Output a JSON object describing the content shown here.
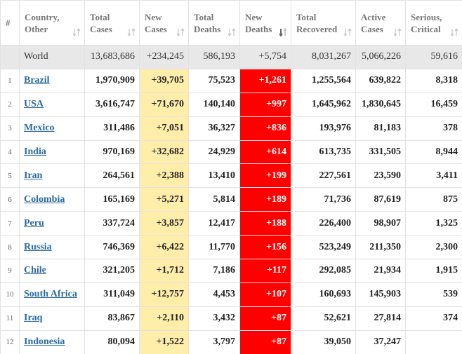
{
  "table": {
    "headers": [
      [
        "#"
      ],
      [
        "Country,",
        "Other"
      ],
      [
        "Total",
        "Cases"
      ],
      [
        "New",
        "Cases"
      ],
      [
        "Total",
        "Deaths"
      ],
      [
        "New",
        "Deaths"
      ],
      [
        "Total",
        "Recovered"
      ],
      [
        "Active",
        "Cases"
      ],
      [
        "Serious,",
        "Critical"
      ]
    ],
    "world": [
      "World",
      "13,683,686",
      "+234,245",
      "586,193",
      "+5,754",
      "8,031,267",
      "5,066,226",
      "59,616"
    ],
    "rows": [
      [
        "1",
        "Brazil",
        "1,970,909",
        "+39,705",
        "75,523",
        "+1,261",
        "1,255,564",
        "639,822",
        "8,318"
      ],
      [
        "2",
        "USA",
        "3,616,747",
        "+71,670",
        "140,140",
        "+997",
        "1,645,962",
        "1,830,645",
        "16,459"
      ],
      [
        "3",
        "Mexico",
        "311,486",
        "+7,051",
        "36,327",
        "+836",
        "193,976",
        "81,183",
        "378"
      ],
      [
        "4",
        "India",
        "970,169",
        "+32,682",
        "24,929",
        "+614",
        "613,735",
        "331,505",
        "8,944"
      ],
      [
        "5",
        "Iran",
        "264,561",
        "+2,388",
        "13,410",
        "+199",
        "227,561",
        "23,590",
        "3,411"
      ],
      [
        "6",
        "Colombia",
        "165,169",
        "+5,271",
        "5,814",
        "+189",
        "71,736",
        "87,619",
        "875"
      ],
      [
        "7",
        "Peru",
        "337,724",
        "+3,857",
        "12,417",
        "+188",
        "226,400",
        "98,907",
        "1,325"
      ],
      [
        "8",
        "Russia",
        "746,369",
        "+6,422",
        "11,770",
        "+156",
        "523,249",
        "211,350",
        "2,300"
      ],
      [
        "9",
        "Chile",
        "321,205",
        "+1,712",
        "7,186",
        "+117",
        "292,085",
        "21,934",
        "1,915"
      ],
      [
        "10",
        "South Africa",
        "311,049",
        "+12,757",
        "4,453",
        "+107",
        "160,693",
        "145,903",
        "539"
      ],
      [
        "11",
        "Iraq",
        "83,867",
        "+2,110",
        "3,432",
        "+87",
        "52,621",
        "27,814",
        "374"
      ],
      [
        "12",
        "Indonesia",
        "80,094",
        "+1,522",
        "3,797",
        "+87",
        "39,050",
        "37,247"
      ]
    ]
  }
}
